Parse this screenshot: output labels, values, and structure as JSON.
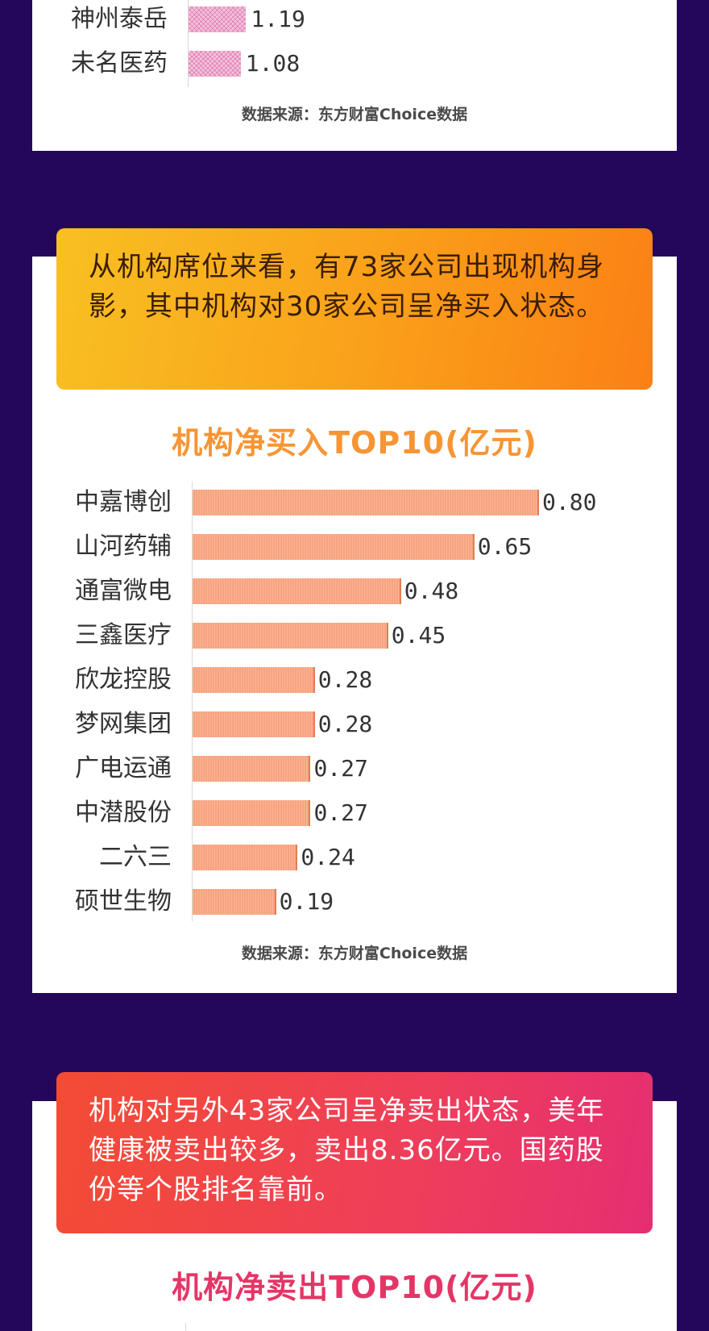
{
  "top_chart": {
    "chart_data": {
      "type": "bar",
      "orientation": "horizontal",
      "categories": [
        "神州泰岳",
        "未名医药"
      ],
      "values": [
        1.19,
        1.08
      ],
      "value_labels": [
        "1.19",
        "1.08"
      ]
    },
    "source": "数据来源：东方财富Choice数据"
  },
  "banner1": {
    "text": "从机构席位来看，有73家公司出现机构身影，其中机构对30家公司呈净买入状态。"
  },
  "buy_chart": {
    "title": "机构净买入TOP10(亿元)",
    "chart_data": {
      "type": "bar",
      "orientation": "horizontal",
      "title": "机构净买入TOP10(亿元)",
      "categories": [
        "中嘉博创",
        "山河药辅",
        "通富微电",
        "三鑫医疗",
        "欣龙控股",
        "梦网集团",
        "广电运通",
        "中潜股份",
        "二六三",
        "硕世生物"
      ],
      "values": [
        0.8,
        0.65,
        0.48,
        0.45,
        0.28,
        0.28,
        0.27,
        0.27,
        0.24,
        0.19
      ],
      "value_labels": [
        "0.80",
        "0.65",
        "0.48",
        "0.45",
        "0.28",
        "0.28",
        "0.27",
        "0.27",
        "0.24",
        "0.19"
      ]
    },
    "source": "数据来源：东方财富Choice数据"
  },
  "banner2": {
    "text": "机构对另外43家公司呈净卖出状态，美年健康被卖出较多，卖出8.36亿元。国药股份等个股排名靠前。"
  },
  "sell_chart": {
    "title": "机构净卖出TOP10(亿元)"
  },
  "colors": {
    "background": "#24075a",
    "buy_bar": "#f8a37f",
    "buy_title": "#f79534",
    "sell_title": "#e43666",
    "pink_bar": "#f3c3dd"
  }
}
